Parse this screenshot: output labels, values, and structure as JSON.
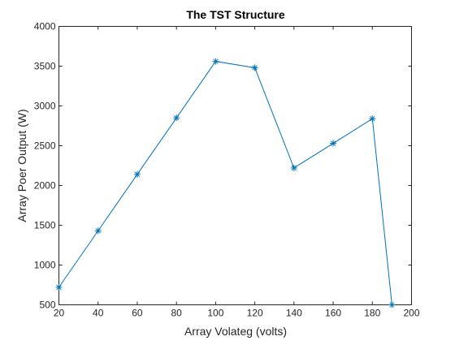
{
  "chart_data": {
    "type": "line",
    "title": "The TST Structure",
    "xlabel": "Array Volateg (volts)",
    "ylabel": "Array Poer Output (W)",
    "xlim": [
      20,
      200
    ],
    "ylim": [
      500,
      4000
    ],
    "xticks": [
      20,
      40,
      60,
      80,
      100,
      120,
      140,
      160,
      180,
      200
    ],
    "yticks": [
      500,
      1000,
      1500,
      2000,
      2500,
      3000,
      3500,
      4000
    ],
    "x": [
      20,
      40,
      60,
      80,
      100,
      120,
      140,
      160,
      180,
      190
    ],
    "y": [
      720,
      1430,
      2140,
      2850,
      3560,
      3480,
      2220,
      2530,
      2840,
      500
    ],
    "marker": "*",
    "line_color": "#0072BD",
    "grid": false,
    "legend": "none"
  }
}
